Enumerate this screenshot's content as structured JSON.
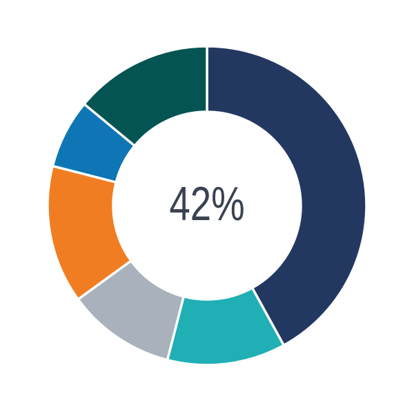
{
  "chart_data": {
    "type": "pie",
    "subtype": "donut",
    "title": "",
    "center_label": "42%",
    "center_label_color": "#3a4252",
    "series": [
      {
        "name": "navy",
        "value": 42,
        "color": "#233861"
      },
      {
        "name": "teal",
        "value": 12,
        "color": "#1fafb5"
      },
      {
        "name": "gray",
        "value": 11,
        "color": "#a9b1bc"
      },
      {
        "name": "orange",
        "value": 14,
        "color": "#f17d22"
      },
      {
        "name": "blue",
        "value": 7,
        "color": "#0e76b4"
      },
      {
        "name": "dark-green",
        "value": 14,
        "color": "#045454"
      }
    ],
    "start_angle_deg": 0,
    "direction": "clockwise",
    "center": [
      300,
      298
    ],
    "outer_radius": 231,
    "inner_radius": 136,
    "gap_stroke_color": "#ffffff",
    "gap_stroke_width": 3.5,
    "legend": "none",
    "background": "#ffffff"
  }
}
